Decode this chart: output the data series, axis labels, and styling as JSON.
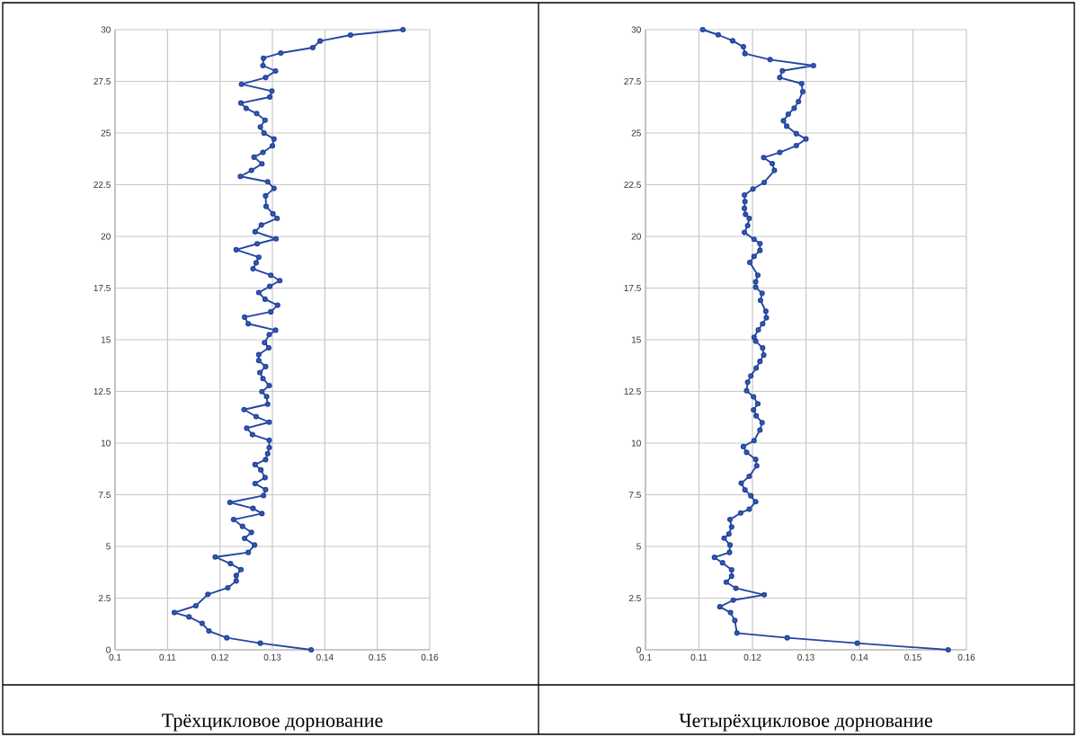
{
  "chart_data": [
    {
      "type": "line",
      "xlabel": "Трёхцикловое дорнование",
      "color": "#2346a0",
      "marker": "circle",
      "grid": true,
      "xlim": [
        0.1,
        0.16
      ],
      "ylim": [
        0,
        30
      ],
      "xticks": [
        0.1,
        0.11,
        0.12,
        0.13,
        0.14,
        0.15,
        0.16
      ],
      "yticks": [
        0,
        2.5,
        5,
        7.5,
        10,
        12.5,
        15,
        17.5,
        20,
        22.5,
        25,
        27.5,
        30
      ],
      "x": [
        0.1374,
        0.1277,
        0.1213,
        0.1179,
        0.1166,
        0.1141,
        0.1113,
        0.1154,
        0.1177,
        0.1215,
        0.1231,
        0.1231,
        0.124,
        0.122,
        0.1191,
        0.1254,
        0.1266,
        0.1247,
        0.126,
        0.1243,
        0.1226,
        0.128,
        0.1263,
        0.1219,
        0.1283,
        0.1287,
        0.1267,
        0.1286,
        0.1278,
        0.1267,
        0.1287,
        0.1291,
        0.1294,
        0.1294,
        0.1262,
        0.1251,
        0.1294,
        0.1269,
        0.1246,
        0.1291,
        0.1289,
        0.128,
        0.1294,
        0.1282,
        0.1276,
        0.1287,
        0.1274,
        0.1274,
        0.1293,
        0.1285,
        0.1294,
        0.1306,
        0.1254,
        0.1247,
        0.1297,
        0.131,
        0.1286,
        0.1274,
        0.1295,
        0.1314,
        0.1297,
        0.1263,
        0.1269,
        0.1274,
        0.1231,
        0.1271,
        0.1307,
        0.1267,
        0.1279,
        0.1309,
        0.1301,
        0.1288,
        0.1287,
        0.1303,
        0.1291,
        0.1239,
        0.126,
        0.128,
        0.1265,
        0.1282,
        0.13,
        0.1303,
        0.1284,
        0.1277,
        0.1286,
        0.127,
        0.125,
        0.124,
        0.1295,
        0.1299,
        0.1241,
        0.1287,
        0.1306,
        0.1282,
        0.1283,
        0.1316,
        0.1377,
        0.1391,
        0.1449,
        0.1549
      ],
      "values": [
        0,
        0.32,
        0.58,
        0.91,
        1.28,
        1.59,
        1.8,
        2.13,
        2.68,
        3.0,
        3.33,
        3.59,
        3.88,
        4.17,
        4.49,
        4.71,
        5.07,
        5.39,
        5.68,
        5.97,
        6.3,
        6.59,
        6.84,
        7.13,
        7.46,
        7.75,
        8.04,
        8.33,
        8.7,
        8.96,
        9.2,
        9.49,
        9.78,
        10.14,
        10.41,
        10.72,
        11.01,
        11.28,
        11.62,
        11.88,
        12.25,
        12.49,
        12.78,
        13.12,
        13.41,
        13.7,
        13.99,
        14.28,
        14.61,
        14.86,
        15.25,
        15.46,
        15.77,
        16.09,
        16.35,
        16.67,
        16.96,
        17.28,
        17.58,
        17.86,
        18.12,
        18.43,
        18.72,
        18.99,
        19.35,
        19.64,
        19.88,
        20.22,
        20.55,
        20.87,
        21.09,
        21.45,
        21.96,
        22.32,
        22.64,
        22.9,
        23.19,
        23.51,
        23.83,
        24.06,
        24.38,
        24.71,
        25.0,
        25.29,
        25.62,
        25.94,
        26.19,
        26.45,
        26.74,
        27.03,
        27.36,
        27.68,
        28.0,
        28.26,
        28.62,
        28.87,
        29.13,
        29.45,
        29.74,
        30
      ]
    },
    {
      "type": "line",
      "xlabel": "Четырёхцикловое дорнование",
      "color": "#2346a0",
      "marker": "circle",
      "grid": true,
      "xlim": [
        0.1,
        0.16
      ],
      "ylim": [
        0,
        30
      ],
      "xticks": [
        0.1,
        0.11,
        0.12,
        0.13,
        0.14,
        0.15,
        0.16
      ],
      "yticks": [
        0,
        2.5,
        5,
        7.5,
        10,
        12.5,
        15,
        17.5,
        20,
        22.5,
        25,
        27.5,
        30
      ],
      "x": [
        0.1566,
        0.1396,
        0.1265,
        0.1171,
        0.1167,
        0.1159,
        0.1139,
        0.1164,
        0.1222,
        0.1169,
        0.1151,
        0.1161,
        0.1161,
        0.1144,
        0.1129,
        0.1157,
        0.1158,
        0.1147,
        0.1156,
        0.1161,
        0.1158,
        0.1178,
        0.1194,
        0.1206,
        0.1197,
        0.1186,
        0.1179,
        0.1194,
        0.1208,
        0.1206,
        0.1189,
        0.1183,
        0.1203,
        0.1214,
        0.1218,
        0.1207,
        0.1202,
        0.121,
        0.1202,
        0.1189,
        0.1191,
        0.1197,
        0.1207,
        0.1214,
        0.1221,
        0.1219,
        0.1206,
        0.1203,
        0.1211,
        0.1219,
        0.1226,
        0.1225,
        0.1215,
        0.1218,
        0.1206,
        0.1206,
        0.121,
        0.1195,
        0.1203,
        0.1214,
        0.1214,
        0.1203,
        0.1185,
        0.1191,
        0.1194,
        0.1187,
        0.1185,
        0.1186,
        0.1185,
        0.1201,
        0.1222,
        0.1241,
        0.1237,
        0.1221,
        0.1251,
        0.1282,
        0.13,
        0.1282,
        0.1264,
        0.1258,
        0.1267,
        0.1278,
        0.1286,
        0.1294,
        0.1292,
        0.1251,
        0.1256,
        0.1314,
        0.1233,
        0.1186,
        0.1183,
        0.1163,
        0.1136,
        0.1107
      ],
      "values": [
        0,
        0.32,
        0.58,
        0.81,
        1.42,
        1.8,
        2.08,
        2.4,
        2.66,
        2.98,
        3.27,
        3.56,
        3.87,
        4.21,
        4.47,
        4.71,
        5.07,
        5.4,
        5.61,
        5.94,
        6.3,
        6.62,
        6.8,
        7.16,
        7.45,
        7.74,
        8.06,
        8.39,
        8.9,
        9.21,
        9.55,
        9.83,
        10.12,
        10.63,
        10.99,
        11.32,
        11.61,
        11.9,
        12.24,
        12.53,
        12.94,
        13.25,
        13.63,
        13.95,
        14.26,
        14.6,
        14.93,
        15.12,
        15.48,
        15.77,
        16.06,
        16.38,
        16.9,
        17.25,
        17.54,
        17.8,
        18.12,
        18.74,
        19.03,
        19.32,
        19.65,
        19.86,
        20.19,
        20.52,
        20.87,
        21.06,
        21.35,
        21.68,
        22.0,
        22.29,
        22.61,
        23.19,
        23.52,
        23.81,
        24.06,
        24.39,
        24.71,
        24.97,
        25.33,
        25.59,
        25.91,
        26.2,
        26.52,
        27.0,
        27.39,
        27.68,
        28.01,
        28.26,
        28.55,
        28.84,
        29.17,
        29.46,
        29.75,
        30
      ]
    }
  ]
}
